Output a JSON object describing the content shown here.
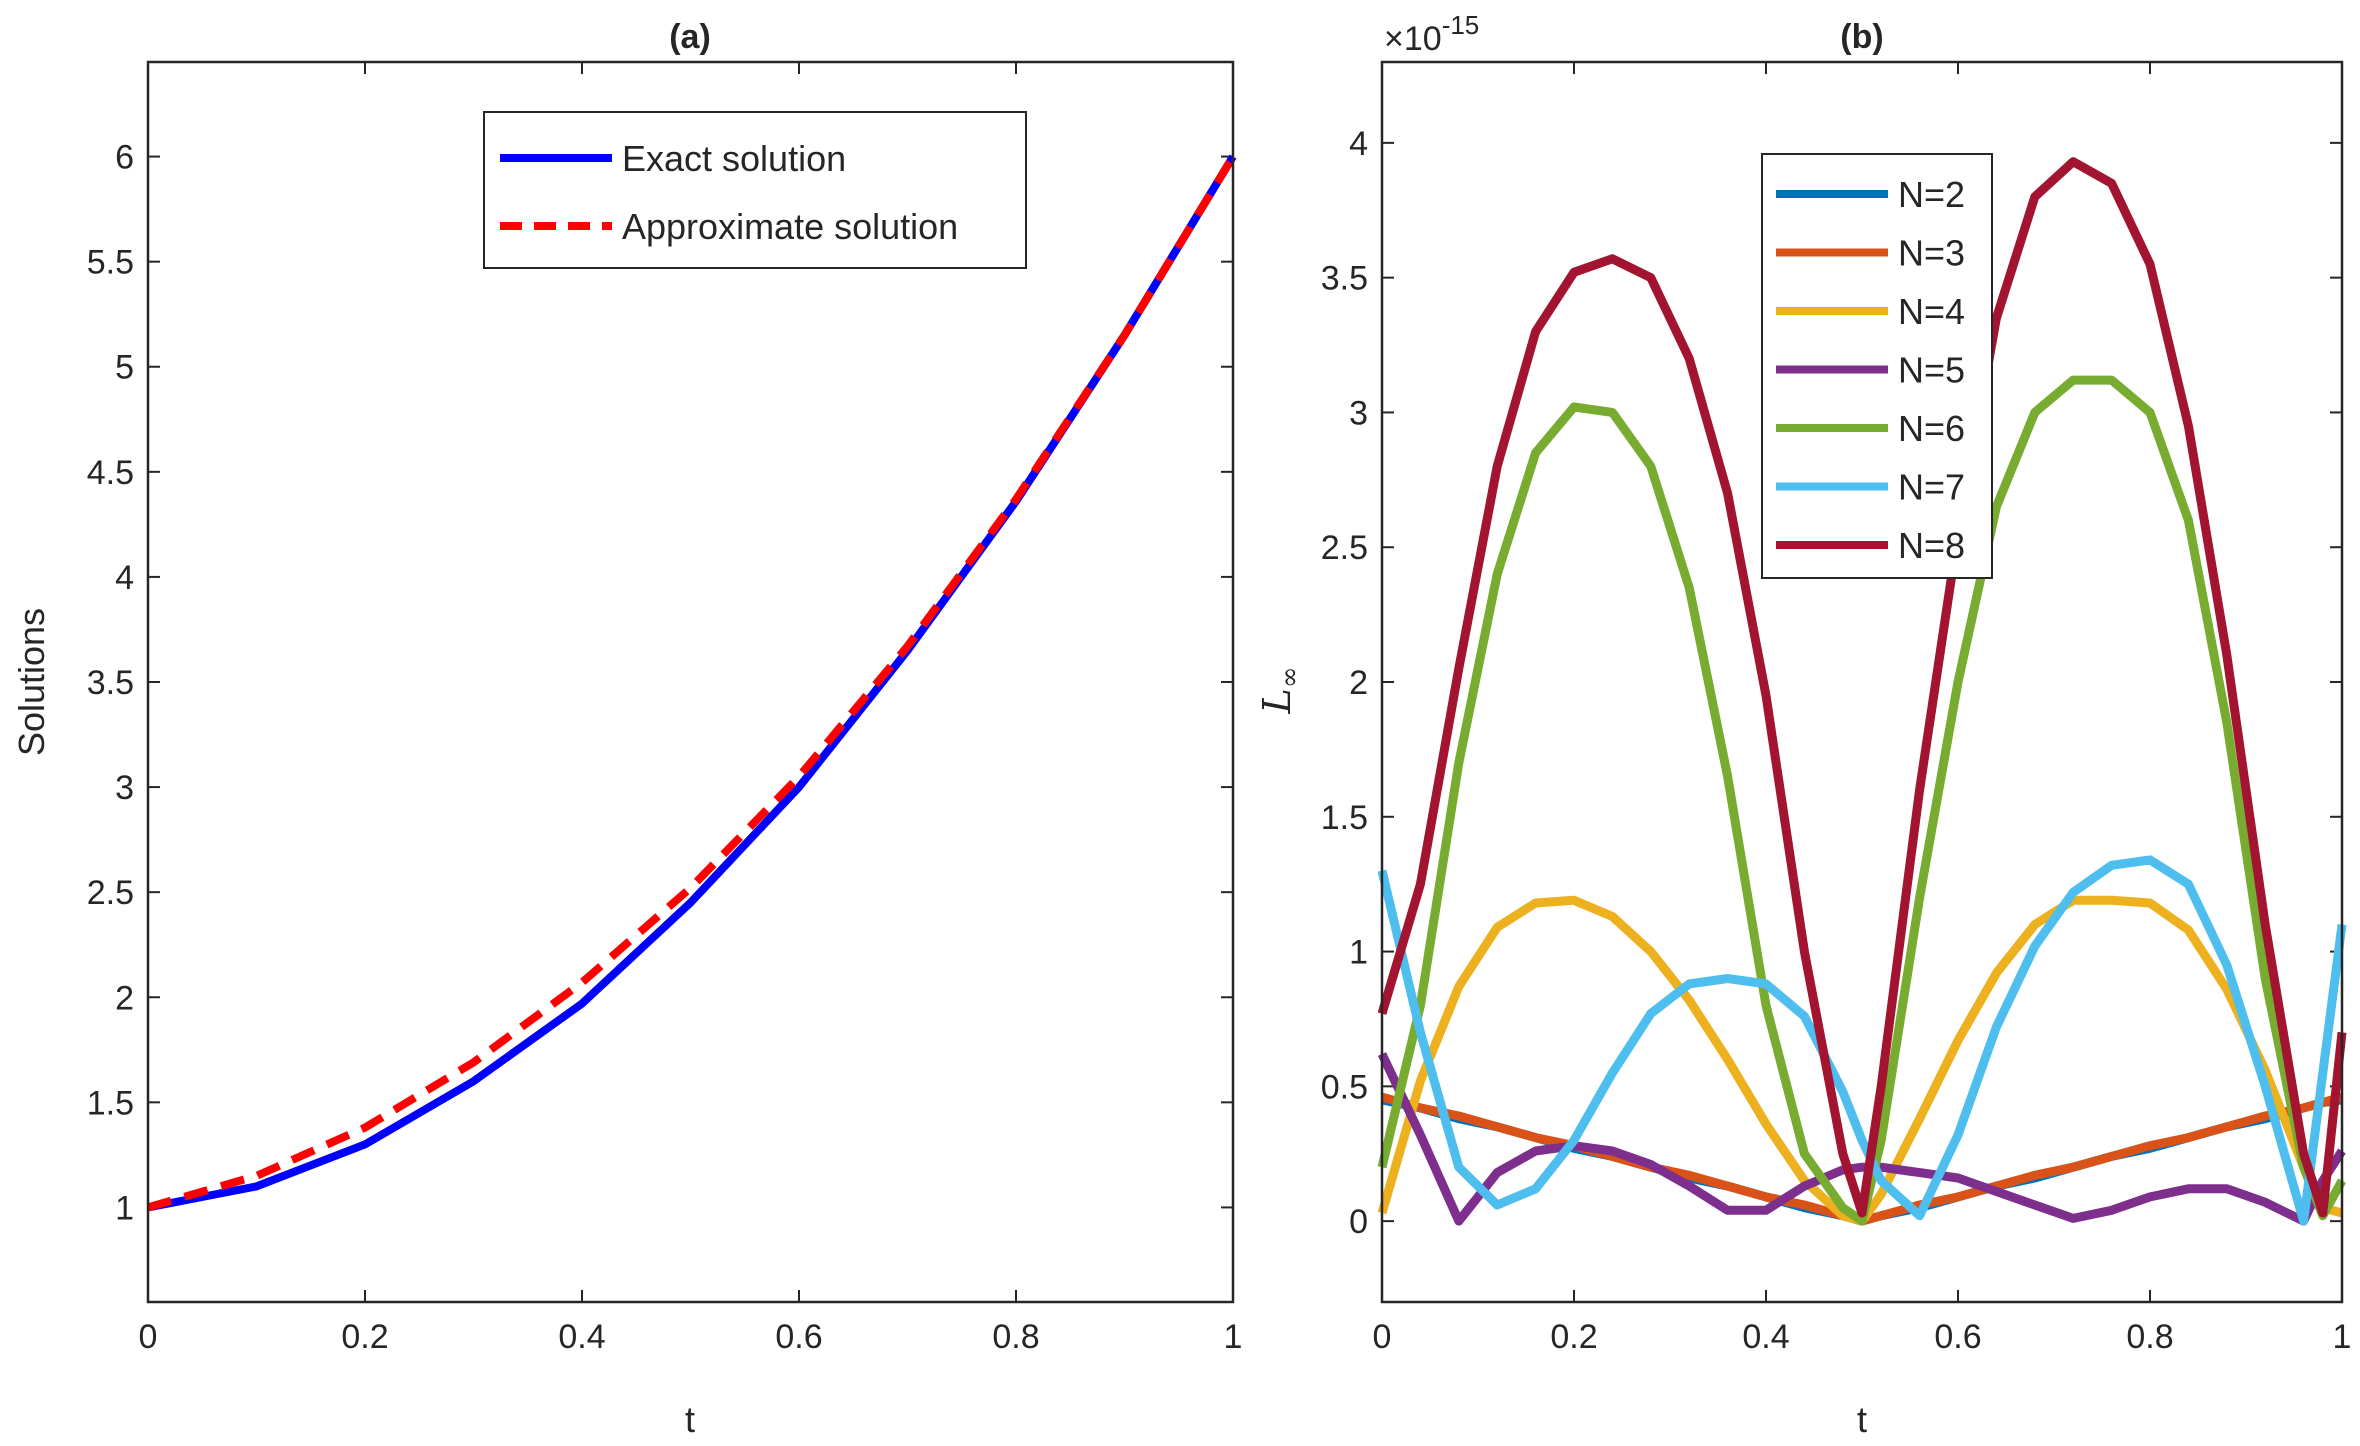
{
  "chart_data": [
    {
      "id": "a",
      "type": "line",
      "title": "(a)",
      "xlabel": "t",
      "ylabel": "Solutions",
      "xlim": [
        0,
        1
      ],
      "ylim": [
        0.55,
        6.45
      ],
      "xticks": [
        "0",
        "0.2",
        "0.4",
        "0.6",
        "0.8",
        "1"
      ],
      "yticks": [
        "1",
        "1.5",
        "2",
        "2.5",
        "3",
        "3.5",
        "4",
        "4.5",
        "5",
        "5.5",
        "6"
      ],
      "legend_position": "top-right",
      "x": [
        0,
        0.1,
        0.2,
        0.3,
        0.4,
        0.5,
        0.6,
        0.7,
        0.8,
        0.9,
        1.0
      ],
      "series": [
        {
          "name": "Exact solution",
          "color": "#0000ff",
          "style": "solid",
          "values": [
            1.0,
            1.1,
            1.3,
            1.6,
            1.97,
            2.45,
            3.0,
            3.65,
            4.36,
            5.15,
            6.0
          ]
        },
        {
          "name": "Approximate solution",
          "color": "#ff0000",
          "style": "dashed",
          "values": [
            1.0,
            1.15,
            1.38,
            1.69,
            2.07,
            2.52,
            3.05,
            3.67,
            4.37,
            5.15,
            6.0
          ]
        }
      ]
    },
    {
      "id": "b",
      "type": "line",
      "title": "(b)",
      "xlabel": "t",
      "ylabel": "L",
      "ylabel_subscript": "∞",
      "exponent_label": "×10",
      "exponent_value": "-15",
      "xlim": [
        0,
        1
      ],
      "ylim": [
        -0.3,
        4.3
      ],
      "xticks": [
        "0",
        "0.2",
        "0.4",
        "0.6",
        "0.8",
        "1"
      ],
      "yticks": [
        "0",
        "0.5",
        "1",
        "1.5",
        "2",
        "2.5",
        "3",
        "3.5",
        "4"
      ],
      "legend_position": "top-center",
      "x": [
        0,
        0.04,
        0.08,
        0.12,
        0.16,
        0.2,
        0.24,
        0.28,
        0.32,
        0.36,
        0.4,
        0.44,
        0.48,
        0.5,
        0.52,
        0.56,
        0.6,
        0.64,
        0.68,
        0.72,
        0.76,
        0.8,
        0.84,
        0.88,
        0.92,
        0.96,
        0.98,
        1.0
      ],
      "series": [
        {
          "name": "N=2",
          "color": "#0072bd",
          "values": [
            0.45,
            0.42,
            0.38,
            0.35,
            0.31,
            0.27,
            0.24,
            0.2,
            0.16,
            0.13,
            0.09,
            0.05,
            0.02,
            0.0,
            0.02,
            0.05,
            0.09,
            0.13,
            0.16,
            0.2,
            0.24,
            0.27,
            0.31,
            0.35,
            0.38,
            0.42,
            0.44,
            0.45
          ]
        },
        {
          "name": "N=3",
          "color": "#d95319",
          "values": [
            0.46,
            0.42,
            0.39,
            0.35,
            0.31,
            0.28,
            0.24,
            0.2,
            0.17,
            0.13,
            0.09,
            0.06,
            0.02,
            0.0,
            0.02,
            0.06,
            0.09,
            0.13,
            0.17,
            0.2,
            0.24,
            0.28,
            0.31,
            0.35,
            0.39,
            0.42,
            0.44,
            0.46
          ]
        },
        {
          "name": "N=4",
          "color": "#edb120",
          "values": [
            0.03,
            0.52,
            0.87,
            1.09,
            1.18,
            1.19,
            1.13,
            1.0,
            0.82,
            0.6,
            0.36,
            0.15,
            0.02,
            0.0,
            0.1,
            0.38,
            0.67,
            0.92,
            1.1,
            1.19,
            1.19,
            1.18,
            1.08,
            0.86,
            0.56,
            0.2,
            0.05,
            0.03
          ]
        },
        {
          "name": "N=5",
          "color": "#7e2f8e",
          "values": [
            0.62,
            0.32,
            0.0,
            0.18,
            0.26,
            0.28,
            0.26,
            0.21,
            0.13,
            0.04,
            0.04,
            0.13,
            0.19,
            0.2,
            0.2,
            0.18,
            0.16,
            0.11,
            0.06,
            0.01,
            0.04,
            0.09,
            0.12,
            0.12,
            0.07,
            0.0,
            0.15,
            0.26
          ]
        },
        {
          "name": "N=6",
          "color": "#77ac30",
          "values": [
            0.2,
            0.8,
            1.7,
            2.4,
            2.85,
            3.02,
            3.0,
            2.8,
            2.35,
            1.65,
            0.8,
            0.25,
            0.05,
            0.0,
            0.3,
            1.2,
            2.0,
            2.65,
            3.0,
            3.12,
            3.12,
            3.0,
            2.6,
            1.85,
            0.9,
            0.2,
            0.02,
            0.15
          ]
        },
        {
          "name": "N=7",
          "color": "#4dbeee",
          "values": [
            1.3,
            0.7,
            0.2,
            0.06,
            0.12,
            0.3,
            0.55,
            0.77,
            0.88,
            0.9,
            0.88,
            0.76,
            0.48,
            0.3,
            0.15,
            0.02,
            0.32,
            0.72,
            1.02,
            1.22,
            1.32,
            1.34,
            1.25,
            0.95,
            0.5,
            0.0,
            0.55,
            1.1
          ]
        },
        {
          "name": "N=8",
          "color": "#a2142f",
          "values": [
            0.77,
            1.25,
            2.05,
            2.8,
            3.3,
            3.52,
            3.57,
            3.5,
            3.2,
            2.7,
            1.95,
            1.0,
            0.25,
            0.03,
            0.5,
            1.6,
            2.55,
            3.35,
            3.8,
            3.93,
            3.85,
            3.55,
            2.95,
            2.1,
            1.1,
            0.25,
            0.03,
            0.7
          ]
        }
      ]
    }
  ]
}
